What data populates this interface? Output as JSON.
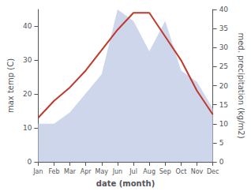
{
  "chart_data": {
    "type": "line",
    "categories": [
      "Jan",
      "Feb",
      "Mar",
      "Apr",
      "May",
      "Jun",
      "Jul",
      "Aug",
      "Sep",
      "Oct",
      "Nov",
      "Dec"
    ],
    "series": [
      {
        "type": "area",
        "color": "#c5cfe8",
        "axis": "y2",
        "values": [
          10,
          10,
          13,
          18,
          23,
          40,
          37,
          29,
          37,
          24,
          21,
          14
        ]
      },
      {
        "type": "line",
        "color": "#c0392b",
        "values": [
          13,
          18,
          22,
          27,
          33,
          39,
          44,
          44,
          37,
          30,
          21,
          14
        ]
      }
    ],
    "xlabel": "date (month)",
    "ylabel": "max temp (C)",
    "y2label": "med. precipitation (kg/m2)",
    "ylim": [
      0,
      45
    ],
    "yticks": [
      0,
      10,
      20,
      30,
      40
    ],
    "y2lim": [
      0,
      40
    ],
    "y2ticks": [
      0,
      5,
      10,
      15,
      20,
      25,
      30,
      35,
      40
    ],
    "grid": false
  }
}
